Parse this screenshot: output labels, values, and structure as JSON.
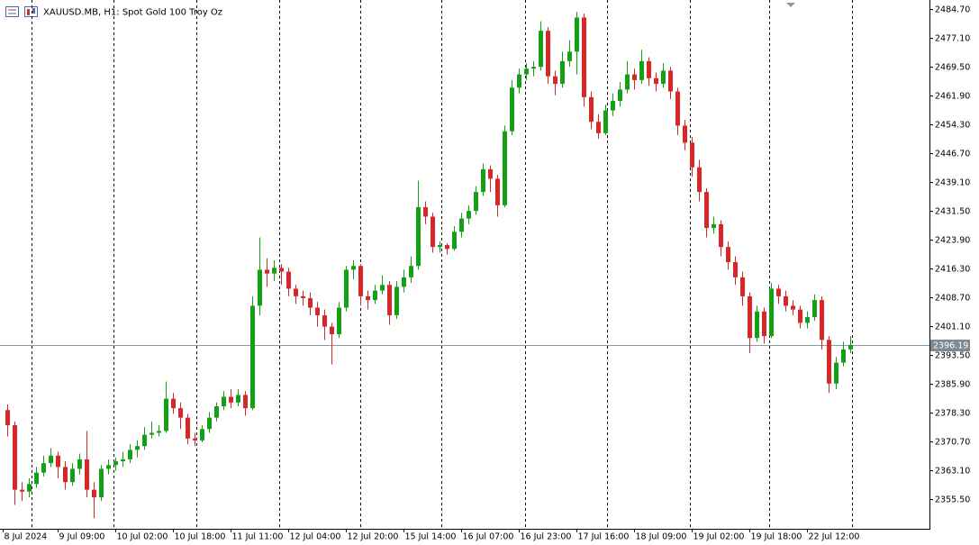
{
  "chart_data": {
    "type": "candlestick",
    "title": "XAUUSD.MB, H1:  Spot Gold 100 Troy Oz",
    "up_color": "#14a014",
    "down_color": "#d62828",
    "xlim": [
      -1,
      128
    ],
    "ylim": [
      2347.7,
      2486.4
    ],
    "yticks": [
      {
        "value": 2484.7,
        "label": "2484.70"
      },
      {
        "value": 2477.1,
        "label": "2477.10"
      },
      {
        "value": 2469.5,
        "label": "2469.50"
      },
      {
        "value": 2461.9,
        "label": "2461.90"
      },
      {
        "value": 2454.3,
        "label": "2454.30"
      },
      {
        "value": 2446.7,
        "label": "2446.70"
      },
      {
        "value": 2439.1,
        "label": "2439.10"
      },
      {
        "value": 2431.5,
        "label": "2431.50"
      },
      {
        "value": 2423.9,
        "label": "2423.90"
      },
      {
        "value": 2416.3,
        "label": "2416.30"
      },
      {
        "value": 2408.7,
        "label": "2408.70"
      },
      {
        "value": 2401.1,
        "label": "2401.10"
      },
      {
        "value": 2393.5,
        "label": "2393.50"
      },
      {
        "value": 2385.9,
        "label": "2385.90"
      },
      {
        "value": 2378.3,
        "label": "2378.30"
      },
      {
        "value": 2370.7,
        "label": "2370.70"
      },
      {
        "value": 2363.1,
        "label": "2363.10"
      },
      {
        "value": 2355.5,
        "label": "2355.50"
      }
    ],
    "xticks": [
      {
        "value": -0.625,
        "label": "8 Jul 2024"
      },
      {
        "value": 7,
        "label": "9 Jul 09:00"
      },
      {
        "value": 15,
        "label": "10 Jul 02:00"
      },
      {
        "value": 23,
        "label": "10 Jul 18:00"
      },
      {
        "value": 31,
        "label": "11 Jul 11:00"
      },
      {
        "value": 39,
        "label": "12 Jul 04:00"
      },
      {
        "value": 47,
        "label": "12 Jul 20:00"
      },
      {
        "value": 55,
        "label": "15 Jul 14:00"
      },
      {
        "value": 63,
        "label": "16 Jul 07:00"
      },
      {
        "value": 71,
        "label": "16 Jul 23:00"
      },
      {
        "value": 79,
        "label": "17 Jul 16:00"
      },
      {
        "value": 87,
        "label": "18 Jul 09:00"
      },
      {
        "value": 95,
        "label": "19 Jul 02:00"
      },
      {
        "value": 103,
        "label": "19 Jul 18:00"
      },
      {
        "value": 111,
        "label": "22 Jul 12:00"
      }
    ],
    "separators": [
      3.375,
      14.75,
      26.25,
      37.75,
      49,
      60.25,
      71.875,
      83.25,
      94.75,
      105.75,
      117.25
    ],
    "last_price": {
      "value": 2396.19,
      "label": "2396.19"
    },
    "ohlc": [
      [
        2379.0,
        2380.5,
        2372.0,
        2375.0
      ],
      [
        2375.0,
        2376.0,
        2354.0,
        2358.0
      ],
      [
        2358.0,
        2360.0,
        2355.0,
        2357.5
      ],
      [
        2357.5,
        2361.0,
        2356.0,
        2359.5
      ],
      [
        2359.5,
        2364.0,
        2358.5,
        2362.5
      ],
      [
        2362.5,
        2367.0,
        2361.5,
        2365.0
      ],
      [
        2365.0,
        2369.0,
        2364.0,
        2367.0
      ],
      [
        2367.0,
        2368.0,
        2361.0,
        2364.0
      ],
      [
        2364.0,
        2365.5,
        2358.0,
        2360.0
      ],
      [
        2360.0,
        2365.0,
        2359.0,
        2363.5
      ],
      [
        2363.5,
        2367.5,
        2362.0,
        2366.0
      ],
      [
        2366.0,
        2373.5,
        2356.0,
        2358.0
      ],
      [
        2358.0,
        2360.0,
        2350.5,
        2356.0
      ],
      [
        2356.0,
        2364.5,
        2355.0,
        2363.5
      ],
      [
        2363.5,
        2366.0,
        2362.0,
        2364.5
      ],
      [
        2364.5,
        2366.5,
        2363.0,
        2365.5
      ],
      [
        2365.5,
        2368.0,
        2364.0,
        2366.0
      ],
      [
        2366.0,
        2370.0,
        2365.0,
        2368.5
      ],
      [
        2368.5,
        2371.0,
        2366.5,
        2369.5
      ],
      [
        2369.5,
        2374.5,
        2368.5,
        2372.5
      ],
      [
        2372.5,
        2376.0,
        2371.5,
        2373.0
      ],
      [
        2373.0,
        2375.0,
        2372.0,
        2373.5
      ],
      [
        2373.5,
        2386.5,
        2373.0,
        2382.0
      ],
      [
        2382.0,
        2383.5,
        2378.0,
        2379.5
      ],
      [
        2379.5,
        2381.0,
        2374.0,
        2377.0
      ],
      [
        2377.0,
        2378.0,
        2370.0,
        2371.5
      ],
      [
        2371.5,
        2373.0,
        2369.5,
        2371.0
      ],
      [
        2371.0,
        2375.0,
        2370.5,
        2374.0
      ],
      [
        2374.0,
        2378.5,
        2373.0,
        2377.0
      ],
      [
        2377.0,
        2381.0,
        2376.0,
        2380.0
      ],
      [
        2380.0,
        2384.0,
        2379.0,
        2382.5
      ],
      [
        2382.5,
        2384.5,
        2379.5,
        2381.0
      ],
      [
        2381.0,
        2384.5,
        2380.0,
        2383.0
      ],
      [
        2383.0,
        2384.0,
        2377.5,
        2379.5
      ],
      [
        2379.5,
        2409.0,
        2379.0,
        2406.5
      ],
      [
        2406.5,
        2424.5,
        2404.0,
        2416.0
      ],
      [
        2416.0,
        2419.0,
        2411.5,
        2415.0
      ],
      [
        2415.0,
        2418.5,
        2413.0,
        2416.5
      ],
      [
        2416.5,
        2417.5,
        2412.0,
        2415.5
      ],
      [
        2415.5,
        2416.5,
        2409.0,
        2411.0
      ],
      [
        2411.0,
        2412.0,
        2407.0,
        2409.0
      ],
      [
        2409.0,
        2410.5,
        2406.5,
        2408.5
      ],
      [
        2408.5,
        2410.0,
        2404.0,
        2406.0
      ],
      [
        2406.0,
        2407.5,
        2401.0,
        2404.0
      ],
      [
        2404.0,
        2405.5,
        2397.5,
        2401.0
      ],
      [
        2401.0,
        2402.0,
        2391.0,
        2399.0
      ],
      [
        2399.0,
        2407.5,
        2398.0,
        2406.0
      ],
      [
        2406.0,
        2417.0,
        2405.0,
        2416.0
      ],
      [
        2416.0,
        2418.5,
        2413.5,
        2417.0
      ],
      [
        2417.0,
        2417.5,
        2406.5,
        2409.0
      ],
      [
        2409.0,
        2410.5,
        2405.5,
        2408.0
      ],
      [
        2408.0,
        2412.0,
        2407.0,
        2410.5
      ],
      [
        2410.5,
        2414.5,
        2409.5,
        2412.0
      ],
      [
        2412.0,
        2413.0,
        2401.5,
        2404.0
      ],
      [
        2404.0,
        2413.0,
        2403.0,
        2411.5
      ],
      [
        2411.5,
        2416.0,
        2410.0,
        2414.0
      ],
      [
        2414.0,
        2419.5,
        2412.5,
        2417.0
      ],
      [
        2417.0,
        2439.5,
        2416.0,
        2432.5
      ],
      [
        2432.5,
        2434.0,
        2428.0,
        2430.0
      ],
      [
        2430.0,
        2431.0,
        2420.5,
        2422.0
      ],
      [
        2422.0,
        2423.5,
        2420.5,
        2422.5
      ],
      [
        2422.5,
        2423.0,
        2420.0,
        2421.5
      ],
      [
        2421.5,
        2427.5,
        2421.0,
        2426.0
      ],
      [
        2426.0,
        2431.0,
        2424.5,
        2429.5
      ],
      [
        2429.5,
        2433.0,
        2428.0,
        2431.5
      ],
      [
        2431.5,
        2438.0,
        2430.5,
        2436.5
      ],
      [
        2436.5,
        2444.0,
        2435.5,
        2442.5
      ],
      [
        2442.5,
        2443.5,
        2436.5,
        2440.0
      ],
      [
        2440.0,
        2441.0,
        2430.0,
        2433.0
      ],
      [
        2433.0,
        2454.0,
        2432.5,
        2452.5
      ],
      [
        2452.5,
        2466.0,
        2451.5,
        2464.0
      ],
      [
        2464.0,
        2469.0,
        2462.5,
        2467.5
      ],
      [
        2467.5,
        2470.5,
        2466.0,
        2469.0
      ],
      [
        2469.0,
        2471.0,
        2467.0,
        2469.5
      ],
      [
        2469.5,
        2481.5,
        2468.5,
        2479.0
      ],
      [
        2479.0,
        2480.0,
        2465.0,
        2467.0
      ],
      [
        2467.0,
        2468.5,
        2462.0,
        2465.0
      ],
      [
        2465.0,
        2473.5,
        2464.0,
        2471.0
      ],
      [
        2471.0,
        2476.5,
        2469.5,
        2473.5
      ],
      [
        2473.5,
        2484.0,
        2467.5,
        2482.5
      ],
      [
        2482.5,
        2483.5,
        2459.0,
        2461.5
      ],
      [
        2461.5,
        2463.0,
        2453.0,
        2455.0
      ],
      [
        2455.0,
        2457.0,
        2450.5,
        2452.0
      ],
      [
        2452.0,
        2459.5,
        2451.5,
        2458.0
      ],
      [
        2458.0,
        2462.5,
        2456.5,
        2460.5
      ],
      [
        2460.5,
        2465.5,
        2459.0,
        2463.5
      ],
      [
        2463.5,
        2471.0,
        2462.5,
        2467.5
      ],
      [
        2467.5,
        2469.0,
        2463.5,
        2466.0
      ],
      [
        2466.0,
        2474.0,
        2465.0,
        2471.0
      ],
      [
        2471.0,
        2472.0,
        2464.5,
        2466.5
      ],
      [
        2466.5,
        2468.0,
        2463.0,
        2465.0
      ],
      [
        2465.0,
        2470.5,
        2464.0,
        2468.5
      ],
      [
        2468.5,
        2469.5,
        2461.0,
        2463.0
      ],
      [
        2463.0,
        2464.0,
        2451.5,
        2454.0
      ],
      [
        2454.0,
        2455.5,
        2447.5,
        2449.5
      ],
      [
        2449.5,
        2451.0,
        2440.5,
        2443.0
      ],
      [
        2443.0,
        2445.0,
        2434.0,
        2436.5
      ],
      [
        2436.5,
        2437.5,
        2424.5,
        2427.0
      ],
      [
        2427.0,
        2430.0,
        2425.5,
        2428.0
      ],
      [
        2428.0,
        2429.0,
        2419.5,
        2422.0
      ],
      [
        2422.0,
        2423.5,
        2416.0,
        2418.0
      ],
      [
        2418.0,
        2419.5,
        2412.0,
        2414.0
      ],
      [
        2414.0,
        2415.5,
        2406.5,
        2409.0
      ],
      [
        2409.0,
        2410.0,
        2394.0,
        2398.0
      ],
      [
        2398.0,
        2406.5,
        2397.0,
        2405.0
      ],
      [
        2405.0,
        2406.0,
        2396.5,
        2398.5
      ],
      [
        2398.5,
        2412.5,
        2398.0,
        2411.0
      ],
      [
        2411.0,
        2412.0,
        2407.0,
        2409.0
      ],
      [
        2409.0,
        2410.5,
        2405.0,
        2406.5
      ],
      [
        2406.5,
        2408.0,
        2404.0,
        2405.5
      ],
      [
        2405.5,
        2406.5,
        2400.5,
        2402.0
      ],
      [
        2402.0,
        2405.0,
        2400.5,
        2403.5
      ],
      [
        2403.5,
        2409.5,
        2402.5,
        2408.0
      ],
      [
        2408.0,
        2409.0,
        2395.0,
        2397.5
      ],
      [
        2397.5,
        2398.5,
        2383.5,
        2386.0
      ],
      [
        2386.0,
        2393.0,
        2384.5,
        2391.5
      ],
      [
        2391.5,
        2397.0,
        2390.5,
        2395.0
      ],
      [
        2395.0,
        2398.5,
        2394.0,
        2396.19
      ]
    ]
  }
}
